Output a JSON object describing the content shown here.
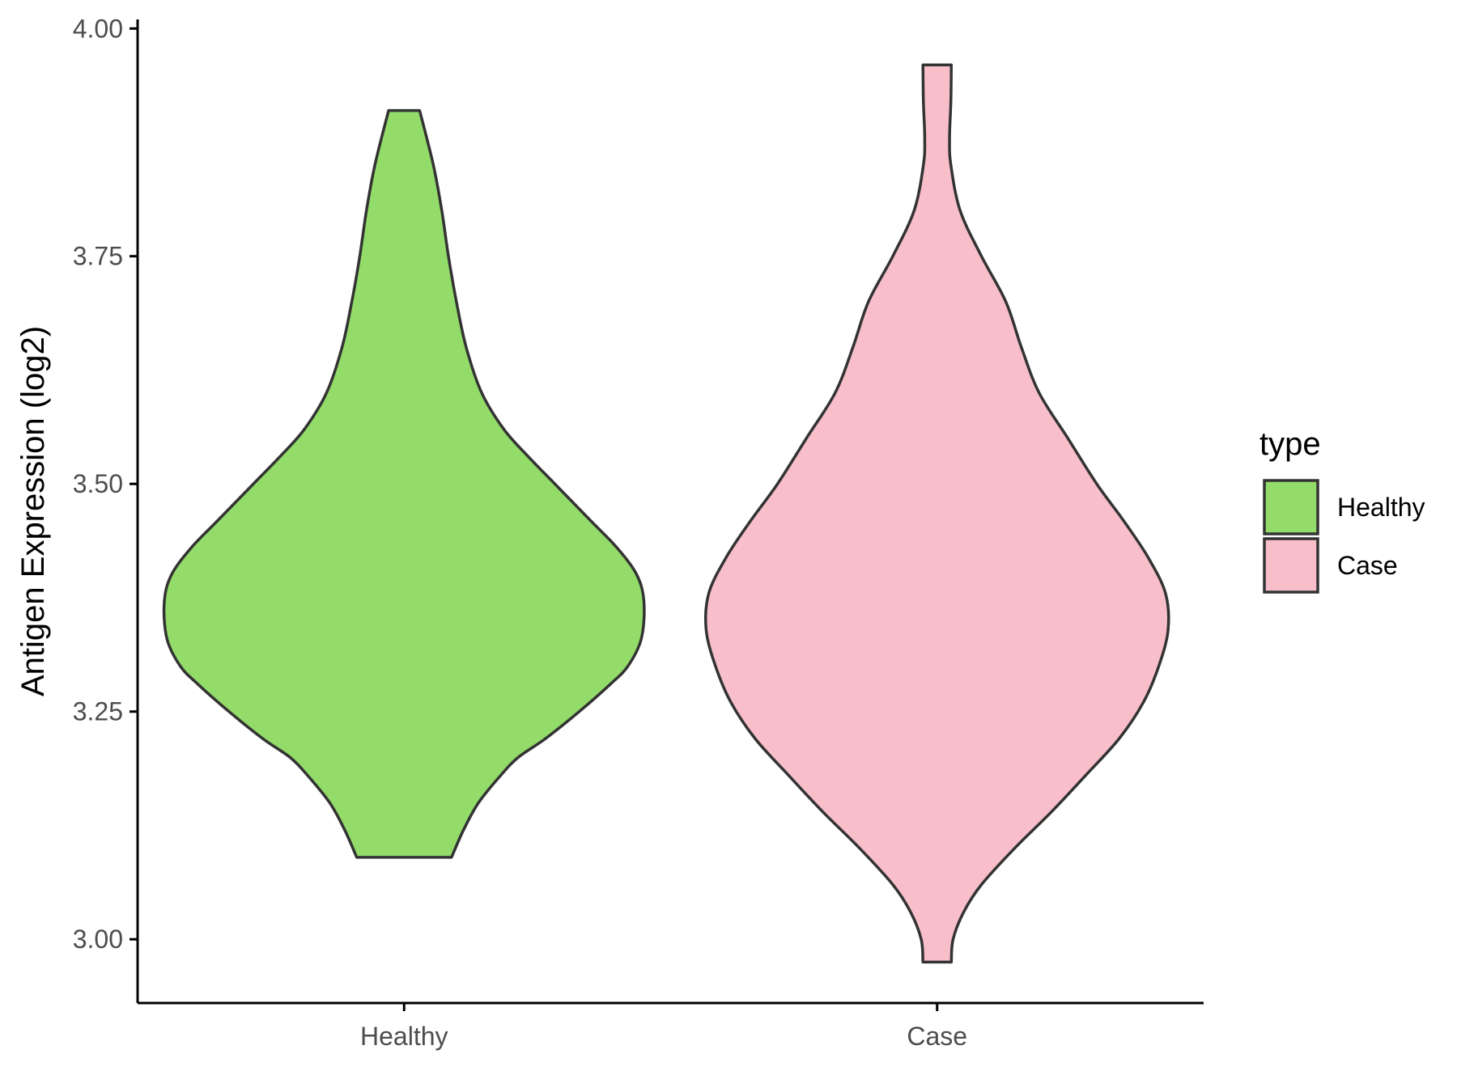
{
  "chart_data": {
    "type": "violin",
    "title": "",
    "xlabel": "",
    "ylabel": "Antigen Expression (log2)",
    "ylim": [
      2.93,
      4.01
    ],
    "yticks": [
      3.0,
      3.25,
      3.5,
      3.75,
      4.0
    ],
    "ytick_labels": [
      "3.00",
      "3.25",
      "3.50",
      "3.75",
      "4.00"
    ],
    "categories": [
      "Healthy",
      "Case"
    ],
    "legend": {
      "title": "type",
      "position": "right"
    },
    "grid": false,
    "series": [
      {
        "name": "Healthy",
        "color": "#93DC6A",
        "min": 3.09,
        "max": 3.91,
        "density": [
          [
            3.09,
            0.107
          ],
          [
            3.12,
            0.134
          ],
          [
            3.15,
            0.168
          ],
          [
            3.18,
            0.218
          ],
          [
            3.2,
            0.258
          ],
          [
            3.22,
            0.318
          ],
          [
            3.25,
            0.395
          ],
          [
            3.28,
            0.465
          ],
          [
            3.3,
            0.505
          ],
          [
            3.33,
            0.535
          ],
          [
            3.37,
            0.541
          ],
          [
            3.4,
            0.525
          ],
          [
            3.43,
            0.48
          ],
          [
            3.46,
            0.42
          ],
          [
            3.5,
            0.34
          ],
          [
            3.53,
            0.28
          ],
          [
            3.56,
            0.225
          ],
          [
            3.6,
            0.175
          ],
          [
            3.65,
            0.14
          ],
          [
            3.7,
            0.118
          ],
          [
            3.75,
            0.1
          ],
          [
            3.8,
            0.085
          ],
          [
            3.85,
            0.066
          ],
          [
            3.91,
            0.035
          ]
        ]
      },
      {
        "name": "Case",
        "color": "#F8BFCB",
        "min": 2.975,
        "max": 3.96,
        "density": [
          [
            2.975,
            0.032
          ],
          [
            3.0,
            0.036
          ],
          [
            3.03,
            0.06
          ],
          [
            3.06,
            0.1
          ],
          [
            3.1,
            0.175
          ],
          [
            3.14,
            0.258
          ],
          [
            3.18,
            0.335
          ],
          [
            3.22,
            0.41
          ],
          [
            3.26,
            0.465
          ],
          [
            3.3,
            0.5
          ],
          [
            3.34,
            0.521
          ],
          [
            3.38,
            0.515
          ],
          [
            3.42,
            0.475
          ],
          [
            3.46,
            0.42
          ],
          [
            3.5,
            0.36
          ],
          [
            3.55,
            0.295
          ],
          [
            3.6,
            0.23
          ],
          [
            3.65,
            0.19
          ],
          [
            3.7,
            0.155
          ],
          [
            3.75,
            0.1
          ],
          [
            3.8,
            0.052
          ],
          [
            3.85,
            0.031
          ],
          [
            3.88,
            0.028
          ],
          [
            3.92,
            0.031
          ],
          [
            3.96,
            0.032
          ]
        ]
      }
    ]
  }
}
